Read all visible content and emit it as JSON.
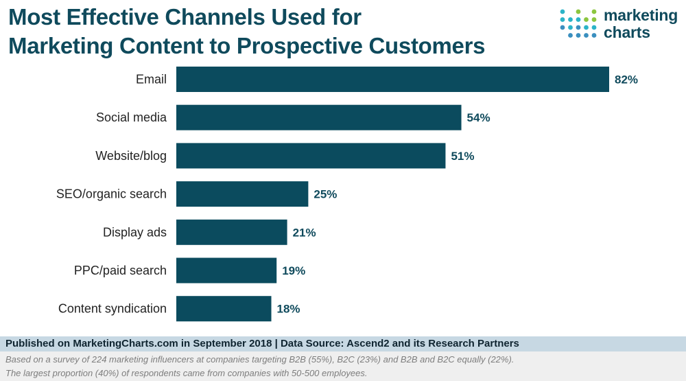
{
  "header": {
    "title_line1": "Most Effective Channels Used for",
    "title_line2": "Marketing Content to Prospective Customers"
  },
  "logo": {
    "word1": "marketing",
    "word2": "charts",
    "icon": "dot-grid-logo-icon",
    "colors": {
      "green": "#8cc63f",
      "teal": "#2bb4c8",
      "blue": "#3a8fbf"
    }
  },
  "colors": {
    "bar": "#0b4b5e",
    "title": "#0f4a5c"
  },
  "chart_data": {
    "type": "bar",
    "orientation": "horizontal",
    "title": "Most Effective Channels Used for Marketing Content to Prospective Customers",
    "categories": [
      "Email",
      "Social media",
      "Website/blog",
      "SEO/organic search",
      "Display ads",
      "PPC/paid search",
      "Content syndication"
    ],
    "values": [
      82,
      54,
      51,
      25,
      21,
      19,
      18
    ],
    "value_labels": [
      "82%",
      "54%",
      "51%",
      "25%",
      "21%",
      "19%",
      "18%"
    ],
    "unit": "%",
    "xlim": [
      0,
      82
    ],
    "grid": false,
    "legend": "none"
  },
  "footer": {
    "published": "Published on MarketingCharts.com in September 2018 | Data Source: Ascend2 and its Research Partners",
    "note1": "Based on a survey of 224 marketing influencers at companies targeting B2B (55%), B2C (23%) and B2B and B2C equally (22%).",
    "note2": "The largest proportion (40%) of respondents came from companies with 50-500 employees."
  }
}
